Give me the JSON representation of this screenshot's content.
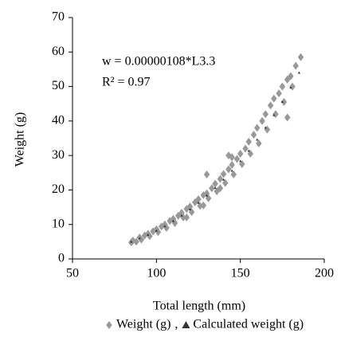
{
  "chart_data": {
    "type": "scatter",
    "x_label": "Total length (mm)",
    "y_label": "Weight (g)",
    "annotations": [
      "w  = 0.00000108*L3.3",
      "R² = 0.97"
    ],
    "legend_separator": ",",
    "xlim": [
      50,
      200
    ],
    "xticks": [
      50,
      100,
      150,
      200
    ],
    "ylim": [
      0,
      70
    ],
    "yticks": [
      0,
      10,
      20,
      30,
      40,
      50,
      60,
      70
    ],
    "series": [
      {
        "name": "Weight (g)",
        "color": "#999999",
        "marker": "diamond",
        "x": [
          85,
          86,
          88,
          90,
          91,
          93,
          95,
          96,
          98,
          100,
          101,
          103,
          105,
          106,
          108,
          110,
          111,
          113,
          115,
          116,
          118,
          120,
          121,
          123,
          125,
          126,
          128,
          130,
          130,
          131,
          133,
          135,
          136,
          138,
          140,
          141,
          143,
          143,
          145,
          146,
          148,
          150,
          151,
          153,
          155,
          156,
          158,
          160,
          161,
          163,
          165,
          166,
          168,
          170,
          171,
          173,
          175,
          176,
          178,
          178,
          180,
          181,
          183,
          186,
          145,
          138,
          128,
          118
        ],
        "values": [
          4.8,
          5.3,
          5.0,
          6.2,
          5.6,
          6.8,
          7.3,
          6.6,
          8.0,
          8.6,
          7.8,
          9.4,
          10.0,
          9.0,
          11.0,
          11.6,
          10.4,
          12.5,
          13.4,
          12.0,
          14.5,
          15.2,
          13.6,
          16.4,
          17.3,
          15.4,
          18.5,
          24.5,
          19.0,
          17.6,
          20.5,
          21.8,
          19.6,
          23.2,
          24.6,
          22.0,
          30.0,
          26.0,
          27.3,
          24.5,
          29.0,
          30.5,
          27.5,
          32.0,
          34.0,
          30.5,
          36.0,
          38.0,
          33.5,
          40.0,
          42.0,
          37.5,
          44.5,
          46.5,
          42.0,
          48.0,
          50.0,
          45.5,
          41.0,
          52.0,
          53.0,
          50.0,
          56.0,
          58.5,
          29.5,
          20.5,
          15.5,
          12.0
        ]
      },
      {
        "name": "Calculated weight (g)",
        "color": "#333333",
        "marker": "triangle",
        "x": [
          85,
          90,
          95,
          100,
          105,
          110,
          115,
          120,
          125,
          130,
          135,
          140,
          145,
          150,
          155,
          160,
          165,
          170,
          175,
          180,
          185
        ],
        "values": [
          5.0,
          6.0,
          7.0,
          8.2,
          9.5,
          11.0,
          12.6,
          14.4,
          16.3,
          18.4,
          20.6,
          23.0,
          25.6,
          28.4,
          31.4,
          34.6,
          38.1,
          41.7,
          45.6,
          49.7,
          54.0
        ]
      }
    ]
  }
}
